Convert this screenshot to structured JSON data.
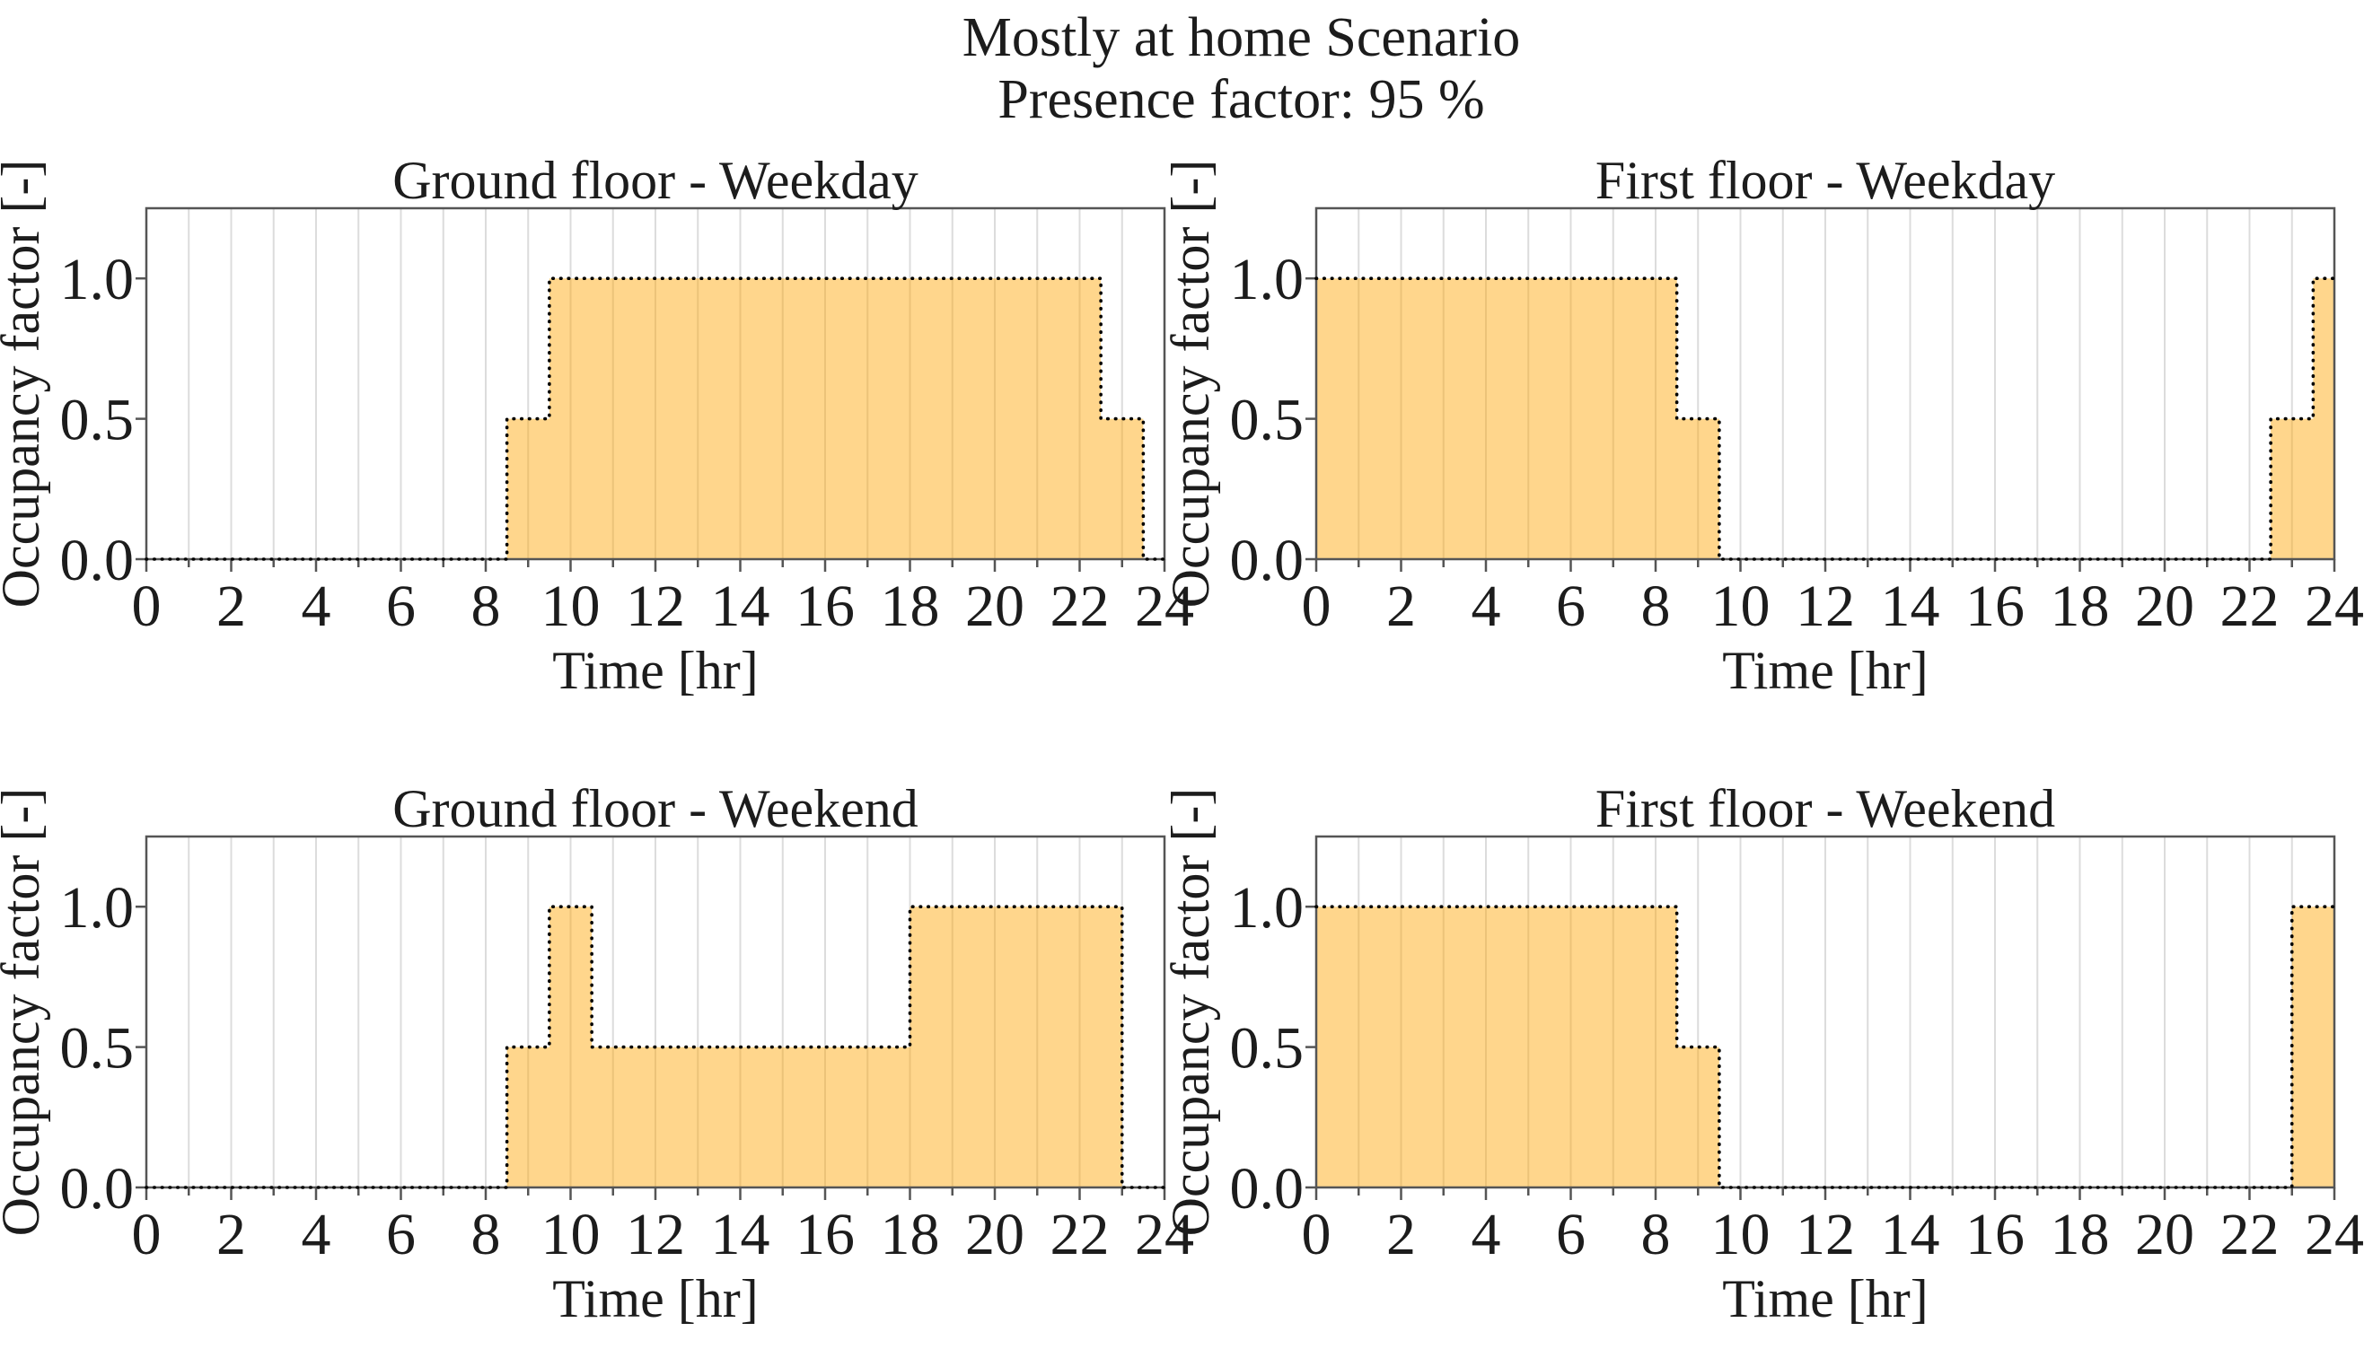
{
  "suptitle": {
    "line1": "Mostly at home Scenario",
    "line2": "Presence factor: 95 %"
  },
  "presence_factor_percent": 95,
  "colors": {
    "fill": "#FFA500",
    "fill_opacity": 0.45,
    "step_line": "#000000",
    "grid": "#dcdcdc",
    "spine": "#555555",
    "text": "#1c1c1c",
    "background": "#ffffff"
  },
  "chart_data": [
    {
      "type": "area",
      "title": "Ground floor - Weekday",
      "xlabel": "Time [hr]",
      "ylabel": "Occupancy factor [-]",
      "xlim": [
        0,
        24
      ],
      "ylim": [
        0,
        1.25
      ],
      "x_ticks": [
        0,
        2,
        4,
        6,
        8,
        10,
        12,
        14,
        16,
        18,
        20,
        22,
        24
      ],
      "y_ticks": [
        {
          "value": 0.0,
          "label": "0.0"
        },
        {
          "value": 0.5,
          "label": "0.5"
        },
        {
          "value": 1.0,
          "label": "1.0"
        }
      ],
      "grid": "vertical gridlines every 1 hr",
      "line_style": "dotted",
      "segments": [
        {
          "from": 0,
          "to": 8.5,
          "value": 0.0
        },
        {
          "from": 8.5,
          "to": 9.5,
          "value": 0.5
        },
        {
          "from": 9.5,
          "to": 22.5,
          "value": 1.0
        },
        {
          "from": 22.5,
          "to": 23.5,
          "value": 0.5
        },
        {
          "from": 23.5,
          "to": 24,
          "value": 0.0
        }
      ]
    },
    {
      "type": "area",
      "title": "First floor - Weekday",
      "xlabel": "Time [hr]",
      "ylabel": "Occupancy factor [-]",
      "xlim": [
        0,
        24
      ],
      "ylim": [
        0,
        1.25
      ],
      "x_ticks": [
        0,
        2,
        4,
        6,
        8,
        10,
        12,
        14,
        16,
        18,
        20,
        22,
        24
      ],
      "y_ticks": [
        {
          "value": 0.0,
          "label": "0.0"
        },
        {
          "value": 0.5,
          "label": "0.5"
        },
        {
          "value": 1.0,
          "label": "1.0"
        }
      ],
      "grid": "vertical gridlines every 1 hr",
      "line_style": "dotted",
      "segments": [
        {
          "from": 0,
          "to": 8.5,
          "value": 1.0
        },
        {
          "from": 8.5,
          "to": 9.5,
          "value": 0.5
        },
        {
          "from": 9.5,
          "to": 22.5,
          "value": 0.0
        },
        {
          "from": 22.5,
          "to": 23.5,
          "value": 0.5
        },
        {
          "from": 23.5,
          "to": 24,
          "value": 1.0
        }
      ]
    },
    {
      "type": "area",
      "title": "Ground floor - Weekend",
      "xlabel": "Time [hr]",
      "ylabel": "Occupancy factor [-]",
      "xlim": [
        0,
        24
      ],
      "ylim": [
        0,
        1.25
      ],
      "x_ticks": [
        0,
        2,
        4,
        6,
        8,
        10,
        12,
        14,
        16,
        18,
        20,
        22,
        24
      ],
      "y_ticks": [
        {
          "value": 0.0,
          "label": "0.0"
        },
        {
          "value": 0.5,
          "label": "0.5"
        },
        {
          "value": 1.0,
          "label": "1.0"
        }
      ],
      "grid": "vertical gridlines every 1 hr",
      "line_style": "dotted",
      "segments": [
        {
          "from": 0,
          "to": 8.5,
          "value": 0.0
        },
        {
          "from": 8.5,
          "to": 9.5,
          "value": 0.5
        },
        {
          "from": 9.5,
          "to": 10.5,
          "value": 1.0
        },
        {
          "from": 10.5,
          "to": 18,
          "value": 0.5
        },
        {
          "from": 18,
          "to": 23,
          "value": 1.0
        },
        {
          "from": 23,
          "to": 24,
          "value": 0.0
        }
      ]
    },
    {
      "type": "area",
      "title": "First floor - Weekend",
      "xlabel": "Time [hr]",
      "ylabel": "Occupancy factor [-]",
      "xlim": [
        0,
        24
      ],
      "ylim": [
        0,
        1.25
      ],
      "x_ticks": [
        0,
        2,
        4,
        6,
        8,
        10,
        12,
        14,
        16,
        18,
        20,
        22,
        24
      ],
      "y_ticks": [
        {
          "value": 0.0,
          "label": "0.0"
        },
        {
          "value": 0.5,
          "label": "0.5"
        },
        {
          "value": 1.0,
          "label": "1.0"
        }
      ],
      "grid": "vertical gridlines every 1 hr",
      "line_style": "dotted",
      "segments": [
        {
          "from": 0,
          "to": 8.5,
          "value": 1.0
        },
        {
          "from": 8.5,
          "to": 9.5,
          "value": 0.5
        },
        {
          "from": 9.5,
          "to": 23,
          "value": 0.0
        },
        {
          "from": 23,
          "to": 24,
          "value": 1.0
        }
      ]
    }
  ]
}
